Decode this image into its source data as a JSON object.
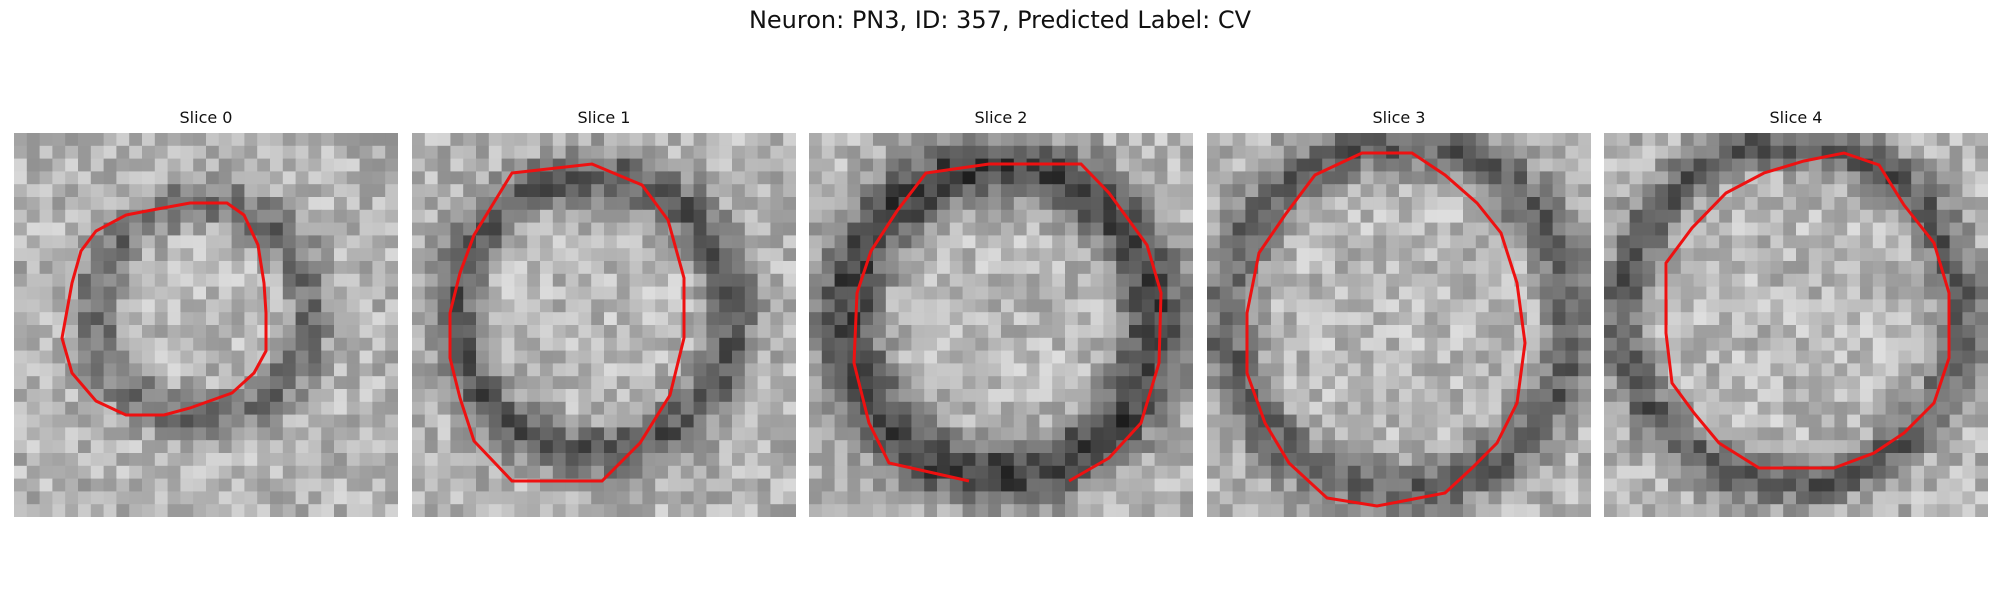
{
  "figure": {
    "title": "Neuron: PN3, ID: 357, Predicted Label: CV"
  },
  "panels": [
    {
      "title": "Slice 0"
    },
    {
      "title": "Slice 1"
    },
    {
      "title": "Slice 2"
    },
    {
      "title": "Slice 3"
    },
    {
      "title": "Slice 4"
    }
  ],
  "colors": {
    "contour": "#ee1111",
    "background": "#ffffff"
  },
  "image": {
    "grid": 30,
    "colormap": "grayscale"
  }
}
